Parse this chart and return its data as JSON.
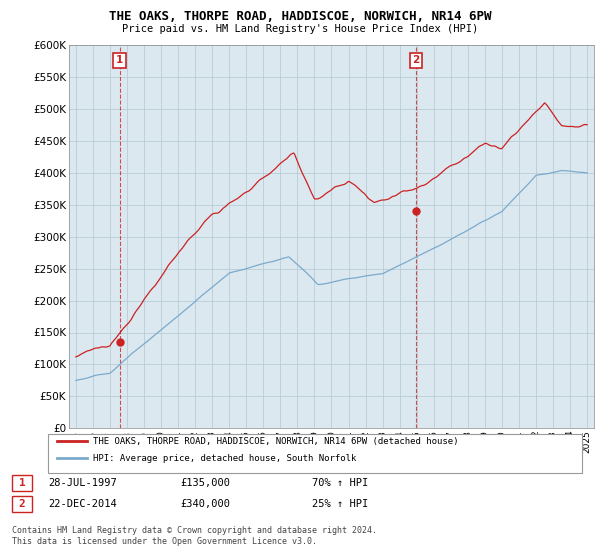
{
  "title": "THE OAKS, THORPE ROAD, HADDISCOE, NORWICH, NR14 6PW",
  "subtitle": "Price paid vs. HM Land Registry's House Price Index (HPI)",
  "legend_line1": "THE OAKS, THORPE ROAD, HADDISCOE, NORWICH, NR14 6PW (detached house)",
  "legend_line2": "HPI: Average price, detached house, South Norfolk",
  "annotation1_date": "28-JUL-1997",
  "annotation1_price": "£135,000",
  "annotation1_hpi": "70% ↑ HPI",
  "annotation2_date": "22-DEC-2014",
  "annotation2_price": "£340,000",
  "annotation2_hpi": "25% ↑ HPI",
  "sale1_x": 1997.57,
  "sale1_y": 135000,
  "sale2_x": 2014.97,
  "sale2_y": 340000,
  "ylim": [
    0,
    600000
  ],
  "xlim_start": 1994.6,
  "xlim_end": 2025.4,
  "price_color": "#cc2222",
  "hpi_color": "#7aaacc",
  "chart_bg": "#dce8f0",
  "background_color": "#ffffff",
  "grid_color": "#b8cdd8",
  "footer": "Contains HM Land Registry data © Crown copyright and database right 2024.\nThis data is licensed under the Open Government Licence v3.0."
}
